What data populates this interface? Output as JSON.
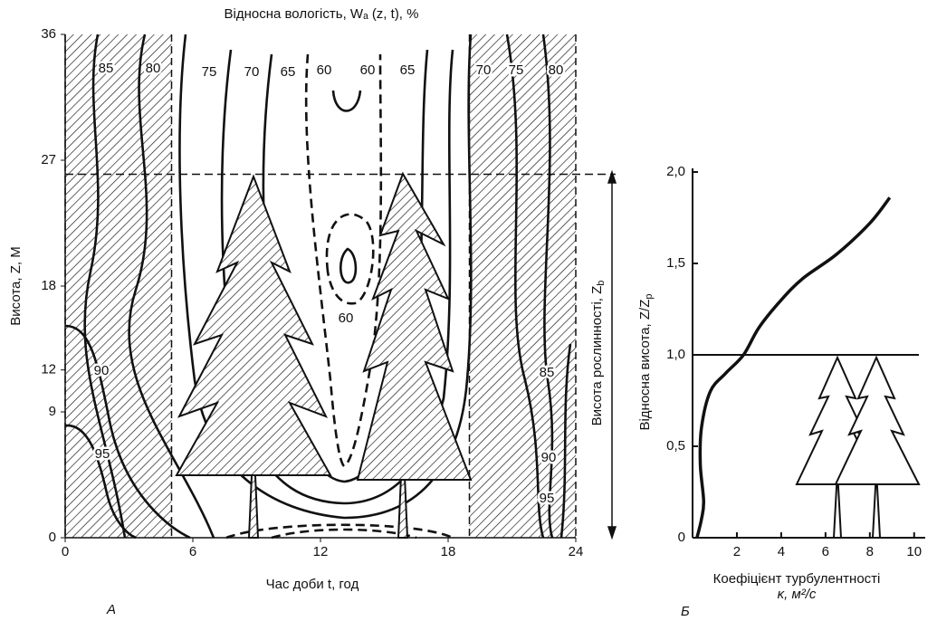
{
  "chart_data": [
    {
      "type": "contour",
      "title": "Відносна вологість, Wₐ (z, t), %",
      "x_label": "Час доби t, год",
      "y_label": "Висота, Z, M",
      "panel": "А",
      "annotation": "Висота рослинності, Z",
      "annotation_sub": "b",
      "xlim": [
        0,
        24
      ],
      "xticks": [
        0,
        6,
        12,
        18,
        24
      ],
      "ylim": [
        0,
        36
      ],
      "yticks": [
        0,
        9,
        12,
        18,
        27,
        36
      ],
      "night_periods": [
        [
          0,
          5
        ],
        [
          19,
          24
        ]
      ],
      "canopy_height": 26,
      "contour_labels": [
        85,
        80,
        75,
        70,
        65,
        60,
        60,
        65,
        70,
        75,
        80,
        90,
        95,
        60,
        85,
        90,
        95
      ]
    },
    {
      "type": "line",
      "x_label": "Коефіцієнт турбулентності",
      "x_unit": "κ, м²/с",
      "panel": "Б",
      "y_label": "Відносна висота, Z/Z",
      "y_label_sub": "p",
      "x": [
        0.2,
        0.4,
        0.5,
        0.35,
        0.4,
        0.8,
        1.5,
        2.3,
        3,
        4,
        5,
        6.5,
        8,
        8.9
      ],
      "values": [
        0,
        0.1,
        0.2,
        0.4,
        0.6,
        0.8,
        0.9,
        1.0,
        1.15,
        1.3,
        1.42,
        1.55,
        1.72,
        1.86
      ],
      "xlim": [
        0,
        10.5
      ],
      "xticks": [
        2,
        4,
        6,
        8,
        10
      ],
      "ylim": [
        0,
        2.1
      ],
      "yticks": [
        0,
        {
          "value": 0.5,
          "label": "0,5"
        },
        {
          "value": 1.0,
          "label": "1,0"
        },
        {
          "value": 1.5,
          "label": "1,5"
        },
        {
          "value": 2.0,
          "label": "2,0"
        }
      ],
      "reference_line": 1.0
    }
  ]
}
